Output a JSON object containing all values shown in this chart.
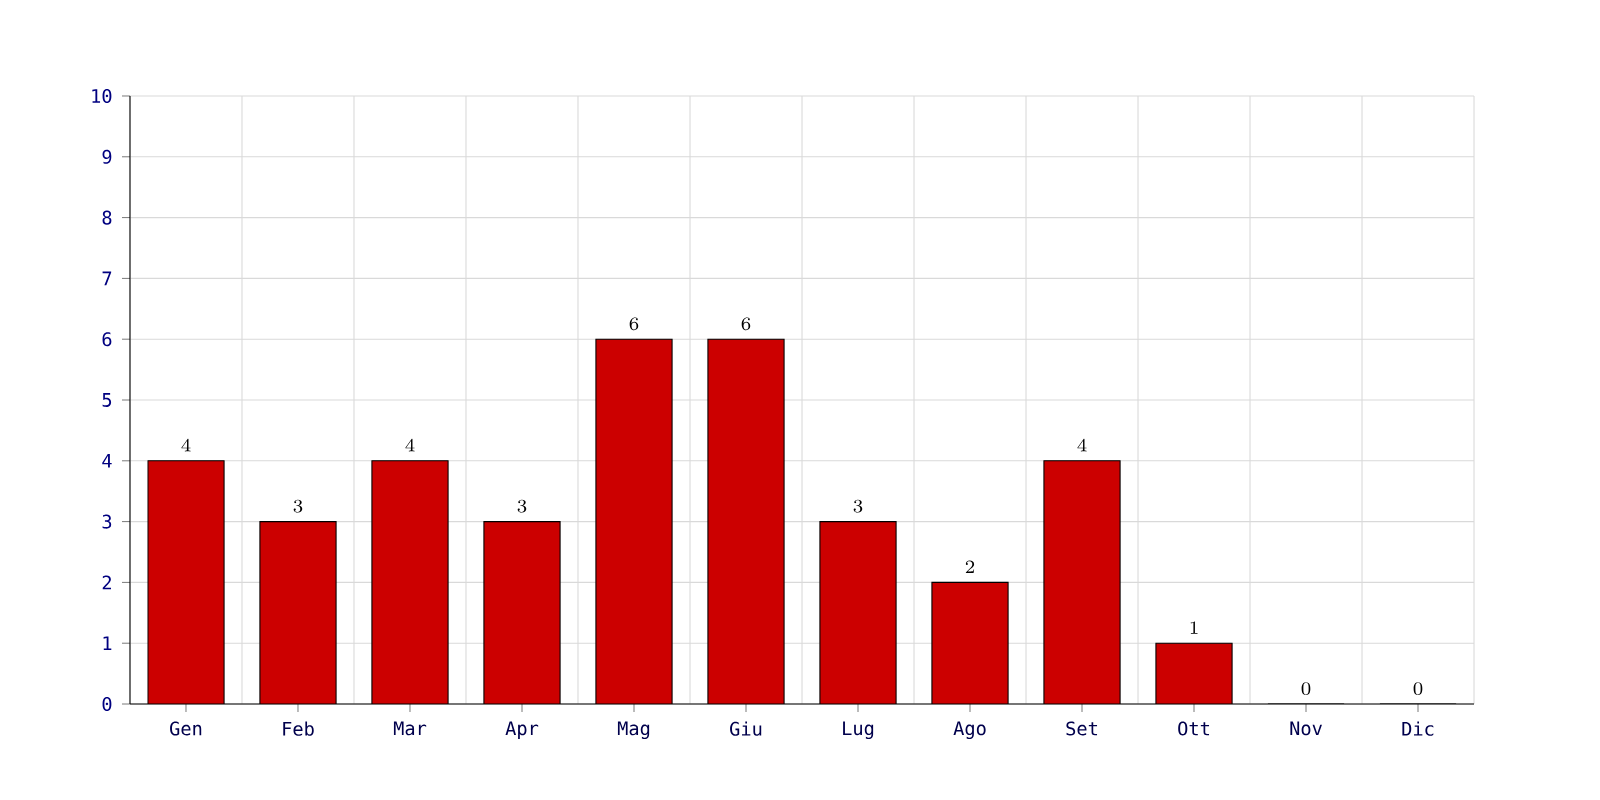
{
  "chart_data": {
    "type": "bar",
    "categories": [
      "Gen",
      "Feb",
      "Mar",
      "Apr",
      "Mag",
      "Giu",
      "Lug",
      "Ago",
      "Set",
      "Ott",
      "Nov",
      "Dic"
    ],
    "values": [
      4,
      3,
      4,
      3,
      6,
      6,
      3,
      2,
      4,
      1,
      0,
      0
    ],
    "color": "#cc0000",
    "ylim": [
      0,
      10
    ],
    "yticks": [
      0,
      1,
      2,
      3,
      4,
      5,
      6,
      7,
      8,
      9,
      10
    ],
    "grid": true,
    "data_labels": true
  }
}
